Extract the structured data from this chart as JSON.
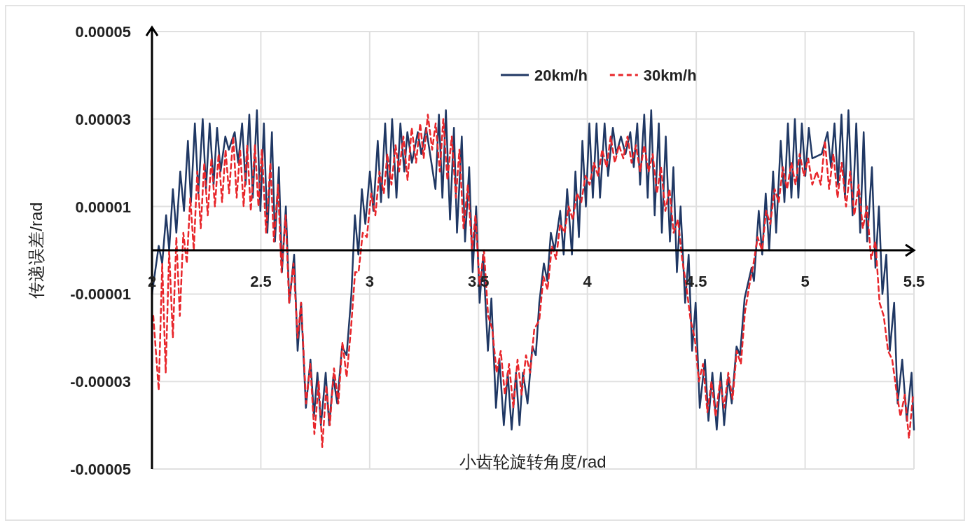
{
  "chart_data": {
    "type": "line",
    "xlabel": "小齿轮旋转角度/rad",
    "ylabel": "传递误差/rad",
    "xlim": [
      2,
      5.5
    ],
    "ylim": [
      -5e-05,
      5e-05
    ],
    "xticks": [
      2,
      2.5,
      3,
      3.5,
      4,
      4.5,
      5,
      5.5
    ],
    "yticks": [
      {
        "value": 5e-05,
        "label": "0.00005"
      },
      {
        "value": 3e-05,
        "label": "0.00003"
      },
      {
        "value": 1e-05,
        "label": "0.00001"
      },
      {
        "value": -1e-05,
        "label": "-0.00001"
      },
      {
        "value": -3e-05,
        "label": "-0.00003"
      },
      {
        "value": -5e-05,
        "label": "-0.00005"
      }
    ],
    "grid": true,
    "legend": "top right",
    "series": [
      {
        "name": "20km/h",
        "color": "#203864",
        "line_style": "solid",
        "x": [
          2.0,
          2.031,
          2.047,
          2.065,
          2.079,
          2.096,
          2.112,
          2.13,
          2.147,
          2.165,
          2.179,
          2.197,
          2.213,
          2.233,
          2.248,
          2.265,
          2.283,
          2.299,
          2.315,
          2.337,
          2.353,
          2.38,
          2.396,
          2.414,
          2.43,
          2.447,
          2.463,
          2.482,
          2.498,
          2.514,
          2.53,
          2.551,
          2.565,
          2.583,
          2.597,
          2.615,
          2.631,
          2.653,
          2.669,
          2.685,
          2.707,
          2.728,
          2.744,
          2.76,
          2.776,
          2.798,
          2.814,
          2.833,
          2.851,
          2.873,
          2.894,
          2.916,
          2.932,
          2.948,
          2.964,
          2.98,
          3.001,
          3.017,
          3.037,
          3.052,
          3.071,
          3.087,
          3.103,
          3.123,
          3.141,
          3.159,
          3.173,
          3.194,
          3.221,
          3.237,
          3.259,
          3.302,
          3.318,
          3.334,
          3.35,
          3.369,
          3.387,
          3.401,
          3.423,
          3.438,
          3.457,
          3.473,
          3.489,
          3.505,
          3.521,
          3.543,
          3.559,
          3.58,
          3.596,
          3.616,
          3.634,
          3.652,
          3.672,
          3.688,
          3.704,
          3.725,
          3.747,
          3.763,
          3.779,
          3.8,
          3.816,
          3.832,
          3.849,
          3.875,
          3.891,
          3.907,
          3.929,
          3.945,
          3.961,
          3.977,
          3.993,
          4.009,
          4.025,
          4.042,
          4.058,
          4.079,
          4.095,
          4.117,
          4.133,
          4.154,
          4.175,
          4.197,
          4.213,
          4.229,
          4.242,
          4.261,
          4.277,
          4.293,
          4.309,
          4.328,
          4.342,
          4.36,
          4.379,
          4.395,
          4.411,
          4.428,
          4.449,
          4.465,
          4.481,
          4.497,
          4.516,
          4.54,
          4.556,
          4.574,
          4.594,
          4.613,
          4.628,
          4.647,
          4.663,
          4.685,
          4.701,
          4.722,
          4.754,
          4.765,
          4.787,
          4.803,
          4.819,
          4.835,
          4.853,
          4.867,
          4.888,
          4.905,
          4.921,
          4.937,
          4.953,
          4.969,
          4.985,
          5.001,
          5.017,
          5.033,
          5.076,
          5.103,
          5.119,
          5.135,
          5.151,
          5.167,
          5.183,
          5.199,
          5.218,
          5.235,
          5.253,
          5.269,
          5.285,
          5.307,
          5.323,
          5.339,
          5.355,
          5.373,
          5.389,
          5.409,
          5.425,
          5.446,
          5.467,
          5.489,
          5.5
        ],
        "values": [
          -1e-05,
          1e-06,
          -3e-06,
          8e-06,
          0.0,
          1.4e-05,
          4e-06,
          1.8e-05,
          9e-06,
          2.5e-05,
          1.1e-05,
          2.9e-05,
          1.3e-05,
          3e-05,
          1.4e-05,
          2.9e-05,
          1.5e-05,
          2.8e-05,
          1.8e-05,
          2.6e-05,
          2.3e-05,
          2.7e-05,
          2e-05,
          2.9e-05,
          1.5e-05,
          3.1e-05,
          1.2e-05,
          3.2e-05,
          9e-06,
          2.9e-05,
          4e-06,
          2.7e-05,
          2e-06,
          1.9e-05,
          -5e-06,
          1e-05,
          -1.2e-05,
          -1e-06,
          -2.3e-05,
          -1.2e-05,
          -3.6e-05,
          -2.5e-05,
          -3.8e-05,
          -2.8e-05,
          -4e-05,
          -2.8e-05,
          -4e-05,
          -2.9e-05,
          -3.5e-05,
          -2.2e-05,
          -2.4e-05,
          -1e-05,
          8e-06,
          -1e-06,
          1.4e-05,
          6e-06,
          1.8e-05,
          9e-06,
          2.5e-05,
          1.1e-05,
          2.9e-05,
          1.2e-05,
          3e-05,
          1.2e-05,
          2.9e-05,
          1.8e-05,
          2.7e-05,
          2e-05,
          2.7e-05,
          2.2e-05,
          2.8e-05,
          1.4e-05,
          3.1e-05,
          1.2e-05,
          3.2e-05,
          7e-06,
          2.8e-05,
          4e-06,
          2.6e-05,
          2e-06,
          1.9e-05,
          -5e-06,
          1e-05,
          -1.2e-05,
          -1e-06,
          -2.3e-05,
          -1.1e-05,
          -3.6e-05,
          -2.5e-05,
          -4e-05,
          -2.8e-05,
          -4.1e-05,
          -2.8e-05,
          -4e-05,
          -2.8e-05,
          -3.5e-05,
          -2.2e-05,
          -2.4e-05,
          -1.2e-05,
          -3e-06,
          -7e-06,
          4e-06,
          0.0,
          9e-06,
          -1e-06,
          1.4e-05,
          -1e-06,
          1.8e-05,
          3e-06,
          2.5e-05,
          1e-05,
          2.9e-05,
          1.2e-05,
          2.9e-05,
          1.2e-05,
          2.9e-05,
          1.7e-05,
          2.8e-05,
          2.2e-05,
          2.6e-05,
          2.2e-05,
          2.7e-05,
          1.9e-05,
          2.9e-05,
          1.5e-05,
          3.1e-05,
          1.2e-05,
          3.2e-05,
          8e-06,
          2.9e-05,
          4e-06,
          2.6e-05,
          2e-06,
          1.9e-05,
          -5e-06,
          1e-05,
          -1.2e-05,
          -1e-06,
          -2.3e-05,
          -1.2e-05,
          -3.6e-05,
          -2.5e-05,
          -3.9e-05,
          -2.8e-05,
          -4.1e-05,
          -2.8e-05,
          -4e-05,
          -2.9e-05,
          -3.5e-05,
          -2.2e-05,
          -2.4e-05,
          -1.1e-05,
          -4e-06,
          -7e-06,
          9e-06,
          -1e-06,
          1.3e-05,
          0.0,
          1.8e-05,
          4e-06,
          2.5e-05,
          1.1e-05,
          2.9e-05,
          1.2e-05,
          3e-05,
          1.2e-05,
          2.9e-05,
          1.7e-05,
          2.8e-05,
          2.1e-05,
          2.2e-05,
          2.7e-05,
          1.9e-05,
          2.9e-05,
          1.5e-05,
          3.1e-05,
          1.2e-05,
          3.2e-05,
          8e-06,
          2.9e-05,
          4e-06,
          2.7e-05,
          2e-06,
          1.9e-05,
          -4e-06,
          1e-05,
          -1e-05,
          -1e-06,
          -2.3e-05,
          -1.2e-05,
          -3.5e-05,
          -2.5e-05,
          -3.9e-05,
          -2.8e-05,
          -4.1e-05
        ]
      },
      {
        "name": "30km/h",
        "color": "#e8262b",
        "line_style": "dashed",
        "x": [
          2.006,
          2.031,
          2.047,
          2.063,
          2.079,
          2.096,
          2.112,
          2.128,
          2.144,
          2.16,
          2.176,
          2.192,
          2.208,
          2.224,
          2.24,
          2.256,
          2.273,
          2.289,
          2.306,
          2.322,
          2.338,
          2.354,
          2.373,
          2.389,
          2.405,
          2.421,
          2.437,
          2.454,
          2.473,
          2.489,
          2.505,
          2.524,
          2.544,
          2.56,
          2.579,
          2.595,
          2.614,
          2.63,
          2.65,
          2.669,
          2.685,
          2.708,
          2.727,
          2.746,
          2.766,
          2.782,
          2.801,
          2.817,
          2.836,
          2.856,
          2.875,
          2.894,
          2.914,
          2.933,
          2.949,
          2.968,
          2.987,
          3.007,
          3.026,
          3.045,
          3.065,
          3.081,
          3.1,
          3.119,
          3.135,
          3.155,
          3.174,
          3.193,
          3.213,
          3.232,
          3.248,
          3.267,
          3.287,
          3.303,
          3.322,
          3.338,
          3.357,
          3.377,
          3.396,
          3.412,
          3.431,
          3.451,
          3.47,
          3.486,
          3.505,
          3.525,
          3.544,
          3.563,
          3.583,
          3.602,
          3.621,
          3.64,
          3.66,
          3.679,
          3.698,
          3.718,
          3.737,
          3.756,
          3.779,
          3.798,
          3.817,
          3.837,
          3.856,
          3.875,
          3.895,
          3.914,
          3.933,
          3.952,
          3.972,
          3.991,
          4.01,
          4.03,
          4.049,
          4.068,
          4.088,
          4.107,
          4.126,
          4.145,
          4.165,
          4.184,
          4.203,
          4.223,
          4.242,
          4.261,
          4.281,
          4.3,
          4.319,
          4.338,
          4.358,
          4.377,
          4.396,
          4.416,
          4.435,
          4.454,
          4.474,
          4.493,
          4.512,
          4.531,
          4.551,
          4.57,
          4.589,
          4.609,
          4.628,
          4.647,
          4.667,
          4.686,
          4.705,
          4.724,
          4.744,
          4.763,
          4.782,
          4.802,
          4.821,
          4.84,
          4.86,
          4.879,
          4.898,
          4.917,
          4.937,
          4.956,
          4.975,
          4.995,
          5.014,
          5.033,
          5.053,
          5.072,
          5.091,
          5.11,
          5.13,
          5.149,
          5.168,
          5.188,
          5.207,
          5.226,
          5.246,
          5.265,
          5.284,
          5.303,
          5.323,
          5.342,
          5.361,
          5.381,
          5.4,
          5.419,
          5.438,
          5.458,
          5.477,
          5.496
        ],
        "values": [
          -1.5e-05,
          -3.2e-05,
          -3e-06,
          -2.8e-05,
          0.0,
          -2e-05,
          3e-06,
          -1.5e-05,
          4e-06,
          -3e-06,
          1.2e-05,
          0.0,
          1.8e-05,
          5e-06,
          2e-05,
          8e-06,
          2.1e-05,
          1e-05,
          2.2e-05,
          1.1e-05,
          2.3e-05,
          1.3e-05,
          2.6e-05,
          1.2e-05,
          2.3e-05,
          1e-05,
          2.4e-05,
          9e-06,
          2.4e-05,
          1e-05,
          2.3e-05,
          4e-06,
          2e-05,
          2e-06,
          1.5e-05,
          -5e-06,
          8e-06,
          -1.2e-05,
          -3e-06,
          -2e-05,
          -1.2e-05,
          -3.5e-05,
          -2.6e-05,
          -4.2e-05,
          -3e-05,
          -4.5e-05,
          -3.1e-05,
          -4e-05,
          -2.7e-05,
          -3.5e-05,
          -2.1e-05,
          -2.9e-05,
          -1.8e-05,
          -5e-06,
          -5e-06,
          4e-06,
          3e-06,
          1.3e-05,
          8e-06,
          1.8e-05,
          1.3e-05,
          2.2e-05,
          1.5e-05,
          2.4e-05,
          1.8e-05,
          2.6e-05,
          1.6e-05,
          2.8e-05,
          2e-05,
          2.9e-05,
          2.1e-05,
          3.1e-05,
          2.3e-05,
          2.9e-05,
          1.8e-05,
          3e-05,
          1.6e-05,
          2.6e-05,
          1.2e-05,
          2.3e-05,
          5e-06,
          1.5e-05,
          0.0,
          8e-06,
          -8e-06,
          0.0,
          -1.5e-05,
          -1.8e-05,
          -2.8e-05,
          -2.3e-05,
          -3.3e-05,
          -2.6e-05,
          -3.6e-05,
          -2.5e-05,
          -3.3e-05,
          -2.4e-05,
          -2.8e-05,
          -1.8e-05,
          -1.6e-05,
          -6e-06,
          -9e-06,
          1e-06,
          -2e-06,
          6e-06,
          4e-06,
          1e-05,
          7e-06,
          1.3e-05,
          1.1e-05,
          1.7e-05,
          1.5e-05,
          2e-05,
          1.7e-05,
          2.3e-05,
          1.9e-05,
          2.6e-05,
          2e-05,
          2.4e-05,
          2.1e-05,
          2.6e-05,
          2e-05,
          2.4e-05,
          1.8e-05,
          2.4e-05,
          1.8e-05,
          2.2e-05,
          1.3e-05,
          1.9e-05,
          9e-06,
          1.4e-05,
          4e-06,
          7e-06,
          -2e-06,
          -8e-06,
          -1.6e-05,
          -2e-05,
          -3e-05,
          -2.6e-05,
          -3.7e-05,
          -3e-05,
          -3.8e-05,
          -3e-05,
          -3.6e-05,
          -2.8e-05,
          -3.4e-05,
          -2.3e-05,
          -2.6e-05,
          -1.4e-05,
          -8e-06,
          -3e-06,
          3e-06,
          0.0,
          9e-06,
          6e-06,
          1.4e-05,
          1.1e-05,
          1.9e-05,
          1.4e-05,
          2e-05,
          1.5e-05,
          2.2e-05,
          1.7e-05,
          2.1e-05,
          1.5e-05,
          1.8e-05,
          1.5e-05,
          2.5e-05,
          1.4e-05,
          2.2e-05,
          1.2e-05,
          2e-05,
          1e-05,
          1.8e-05,
          8e-06,
          1.5e-05,
          5e-06,
          1e-05,
          -2e-06,
          2e-06,
          -1.2e-05,
          -1.5e-05,
          -2.3e-05,
          -2.5e-05,
          -3.2e-05,
          -3.8e-05,
          -3.3e-05,
          -4.3e-05,
          -3.3e-05
        ]
      }
    ]
  }
}
